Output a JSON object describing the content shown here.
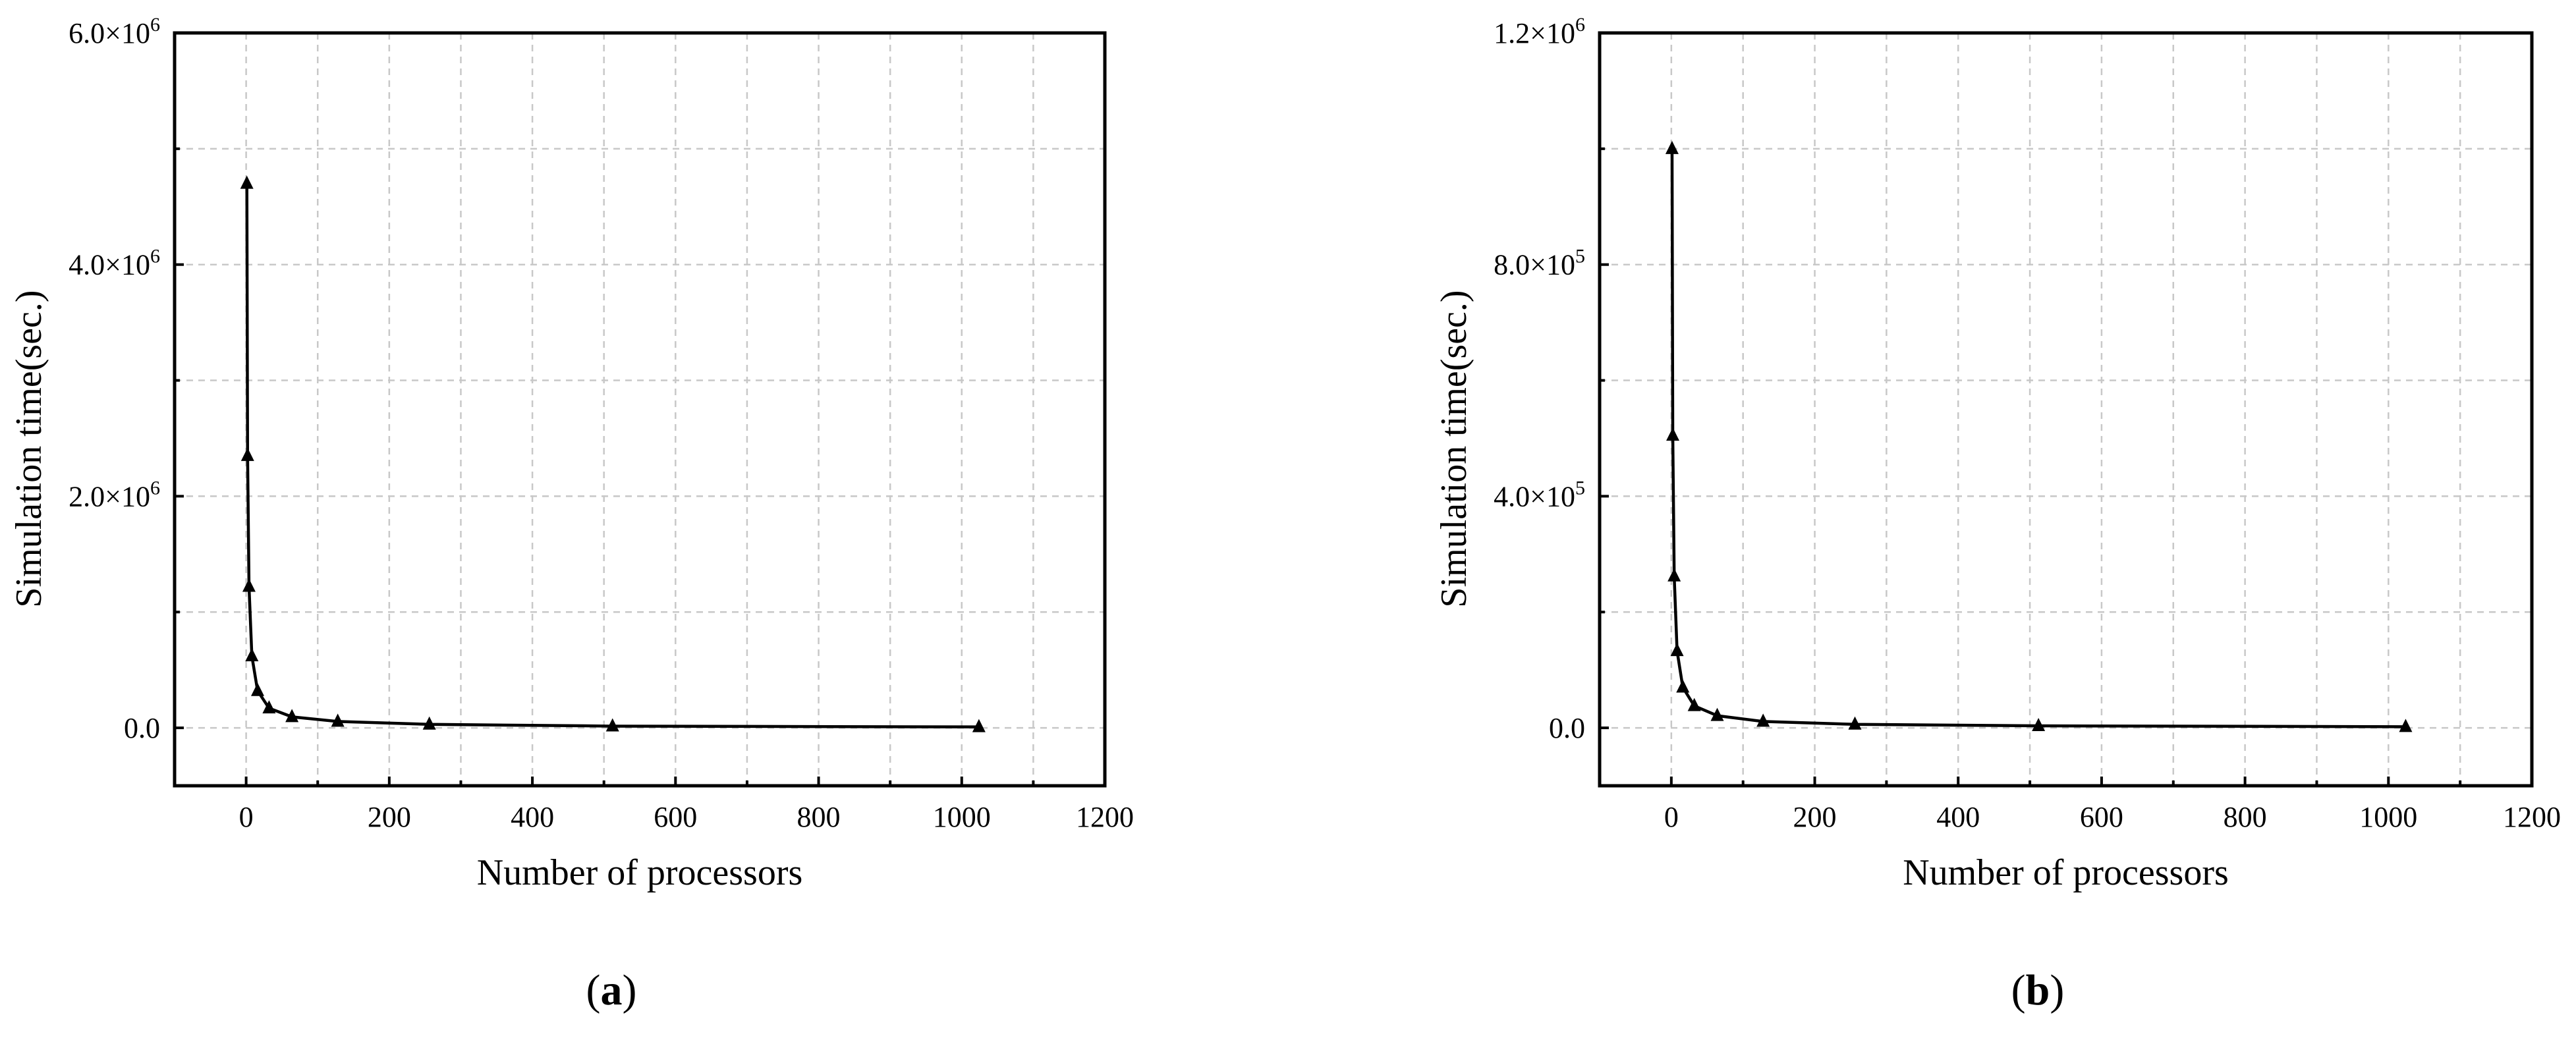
{
  "chart_data": [
    {
      "type": "line",
      "panel_label": {
        "open": "(",
        "letter": "a",
        "close": ")"
      },
      "xlabel": "Number of processors",
      "ylabel": "Simulation time(sec.)",
      "xlim": [
        -100,
        1200
      ],
      "ylim": [
        -500000,
        6000000
      ],
      "x_ticks": [
        0,
        200,
        400,
        600,
        800,
        1000,
        1200
      ],
      "x_tick_labels": [
        "0",
        "200",
        "400",
        "600",
        "800",
        "1000",
        "1200"
      ],
      "y_ticks": [
        0,
        2000000,
        4000000,
        6000000
      ],
      "y_tick_labels": [
        {
          "mantissa": "0.0",
          "exp": ""
        },
        {
          "mantissa": "2.0×10",
          "exp": "6"
        },
        {
          "mantissa": "4.0×10",
          "exp": "6"
        },
        {
          "mantissa": "6.0×10",
          "exp": "6"
        }
      ],
      "y_grid": [
        0,
        1000000,
        2000000,
        3000000,
        4000000,
        5000000
      ],
      "grid": true,
      "marker": "triangle",
      "series": [
        {
          "x": [
            1,
            2,
            4,
            8,
            16,
            32,
            64,
            128,
            256,
            512,
            1024
          ],
          "y": [
            4700000,
            2350000,
            1220000,
            620000,
            320000,
            170000,
            95000,
            55000,
            30000,
            15000,
            8000
          ]
        }
      ]
    },
    {
      "type": "line",
      "panel_label": {
        "open": "(",
        "letter": "b",
        "close": ")"
      },
      "xlabel": "Number of processors",
      "ylabel": "Simulation time(sec.)",
      "xlim": [
        -100,
        1200
      ],
      "ylim": [
        -100000,
        1200000
      ],
      "x_ticks": [
        0,
        200,
        400,
        600,
        800,
        1000,
        1200
      ],
      "x_tick_labels": [
        "0",
        "200",
        "400",
        "600",
        "800",
        "1000",
        "1200"
      ],
      "y_ticks": [
        0,
        400000,
        800000,
        1200000
      ],
      "y_tick_labels": [
        {
          "mantissa": "0.0",
          "exp": ""
        },
        {
          "mantissa": "4.0×10",
          "exp": "5"
        },
        {
          "mantissa": "8.0×10",
          "exp": "5"
        },
        {
          "mantissa": "1.2×10",
          "exp": "6"
        }
      ],
      "y_grid": [
        0,
        200000,
        400000,
        600000,
        800000,
        1000000
      ],
      "grid": true,
      "marker": "triangle",
      "series": [
        {
          "x": [
            1,
            2,
            4,
            8,
            16,
            32,
            64,
            128,
            256,
            512,
            1024
          ],
          "y": [
            1000000,
            505000,
            262000,
            133000,
            70000,
            38000,
            21000,
            11000,
            6000,
            3500,
            2000
          ]
        }
      ]
    }
  ]
}
